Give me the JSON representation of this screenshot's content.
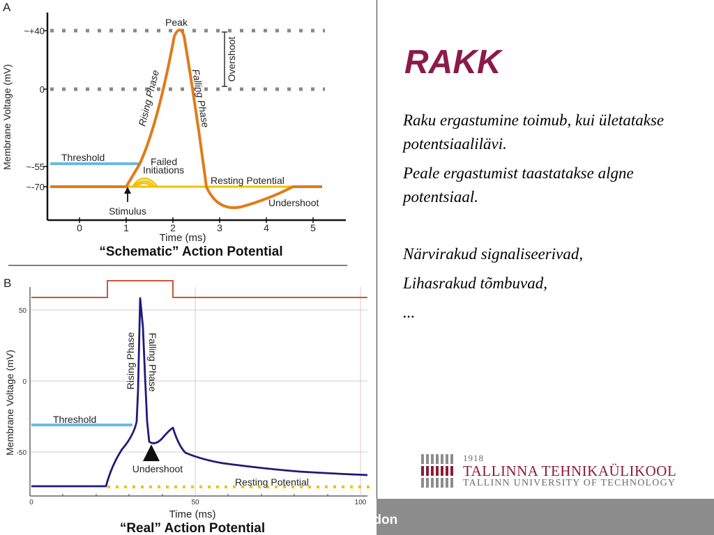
{
  "slide": {
    "title": "RAKK",
    "paragraphs": [
      "Raku ergastumine toimub, kui ületatakse potentsiaalilävi.",
      "Peale ergastumist taastatakse algne potentsiaal.",
      "Närvirakud signaliseerivad,",
      "Lihasrakud tõmbuvad,",
      "..."
    ],
    "footer_text": "rdon"
  },
  "logo": {
    "year": "1918",
    "name": "TALLINNA TEHNIKAÜLIKOOL",
    "subtitle": "TALLINN UNIVERSITY OF TECHNOLOGY"
  },
  "colors": {
    "title": "#8b1a4a",
    "action_potential": "#e07b1a",
    "threshold": "#6ab9e8",
    "failed_initiation": "#f2c200",
    "real_trace": "#1f1a7a",
    "stimulus": "#c8573a",
    "logo": "#8b1a3a"
  },
  "panel_a": {
    "label": "A",
    "title": "“Schematic” Action Potential",
    "xlabel": "Time (ms)",
    "ylabel": "Membrane Voltage (mV)",
    "x_ticks": [
      "0",
      "1",
      "2",
      "3",
      "4",
      "5"
    ],
    "y_ticks": [
      "~+40",
      "0",
      "~-55",
      "~-70"
    ],
    "annotations": {
      "peak": "Peak",
      "overshoot": "Overshoot",
      "rising": "Rising Phase",
      "falling": "Falling Phase",
      "threshold": "Threshold",
      "failed": [
        "Failed",
        "Initiations"
      ],
      "resting": "Resting Potential",
      "undershoot": "Undershoot",
      "stimulus": "Stimulus"
    }
  },
  "panel_b": {
    "label": "B",
    "title": "“Real” Action Potential",
    "xlabel": "Time (ms)",
    "ylabel": "Membrane Voltage (mV)",
    "x_ticks": [
      "0",
      "50",
      "100"
    ],
    "y_ticks": [
      "50",
      "0",
      "-50"
    ],
    "annotations": {
      "rising": "Rising Phase",
      "falling": "Falling Phase",
      "threshold": "Threshold",
      "undershoot": "Undershoot",
      "resting": "Resting Potential"
    }
  }
}
